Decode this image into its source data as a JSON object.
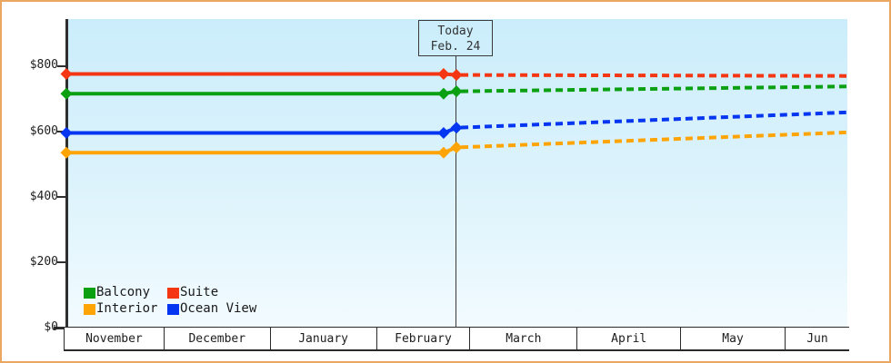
{
  "page": {
    "border_color": "#e9a761",
    "background": "#ffffff"
  },
  "chart_data": {
    "type": "line",
    "title": "",
    "x_axis": {
      "months": [
        "November",
        "December",
        "January",
        "February",
        "March",
        "April",
        "May",
        "Jun"
      ]
    },
    "y_axis": {
      "tick_labels": [
        "$0",
        "$200",
        "$400",
        "$600",
        "$800"
      ],
      "tick_values": [
        0,
        200,
        400,
        600,
        800
      ],
      "ylim": [
        0,
        940
      ],
      "grid": false
    },
    "today_marker": {
      "title": "Today",
      "date": "Feb. 24",
      "x_frac": 0.4995
    },
    "plot_background": {
      "top": "#cbedfb",
      "bottom": "#f2fbff"
    },
    "series": [
      {
        "name": "Suite",
        "color": "#f43612",
        "history": {
          "x": [
            0.0,
            0.483,
            0.4995
          ],
          "values": [
            775,
            775,
            772
          ]
        },
        "forecast": {
          "x": [
            0.4995,
            1.0
          ],
          "values": [
            772,
            769
          ]
        }
      },
      {
        "name": "Balcony",
        "color": "#0aa011",
        "history": {
          "x": [
            0.0,
            0.483,
            0.4995
          ],
          "values": [
            715,
            715,
            722
          ]
        },
        "forecast": {
          "x": [
            0.4995,
            1.0
          ],
          "values": [
            722,
            737
          ]
        }
      },
      {
        "name": "Ocean View",
        "color": "#0435f0",
        "history": {
          "x": [
            0.0,
            0.483,
            0.4995
          ],
          "values": [
            595,
            595,
            611
          ]
        },
        "forecast": {
          "x": [
            0.4995,
            1.0
          ],
          "values": [
            611,
            658
          ]
        }
      },
      {
        "name": "Interior",
        "color": "#ffa405",
        "history": {
          "x": [
            0.0,
            0.483,
            0.4995
          ],
          "values": [
            535,
            535,
            551
          ]
        },
        "forecast": {
          "x": [
            0.4995,
            1.0
          ],
          "values": [
            551,
            597
          ]
        }
      }
    ],
    "legend_position": "bottom-left",
    "line_style": {
      "history": "solid",
      "forecast": "dashed"
    }
  },
  "legend_items": [
    {
      "label": "Balcony",
      "color": "#0aa011"
    },
    {
      "label": "Suite",
      "color": "#f43612"
    },
    {
      "label": "Interior",
      "color": "#ffa405"
    },
    {
      "label": "Ocean View",
      "color": "#0435f0"
    }
  ]
}
